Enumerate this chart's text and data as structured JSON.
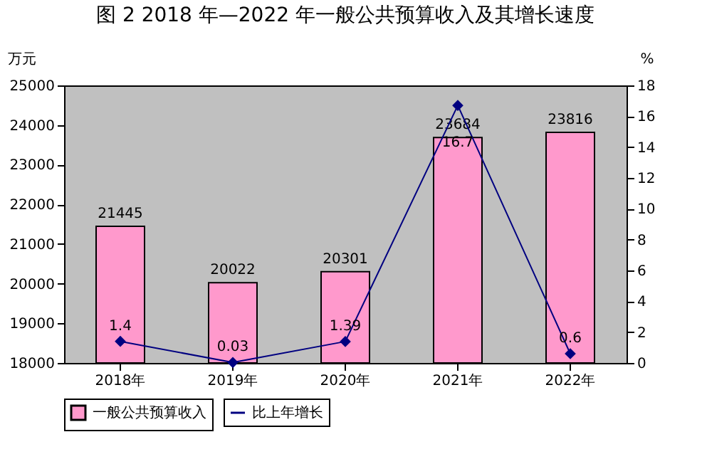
{
  "chart_data": {
    "type": "bar",
    "title": "图 2  2018 年—2022 年一般公共预算收入及其增长速度",
    "ylabel": "万元",
    "y2label": "%",
    "categories": [
      "2018年",
      "2019年",
      "2020年",
      "2021年",
      "2022年"
    ],
    "series": [
      {
        "name": "一般公共预算收入",
        "color": "#ff99cc",
        "values": [
          21445,
          20022,
          20301,
          23684,
          23816
        ]
      },
      {
        "name": "比上年增长",
        "type": "line",
        "color": "#000080",
        "axis": "y2",
        "marker": "diamond",
        "values": [
          1.4,
          0.03,
          1.39,
          16.7,
          0.6
        ]
      }
    ],
    "ylim": [
      18000,
      25000
    ],
    "yticks": [
      18000,
      19000,
      20000,
      21000,
      22000,
      23000,
      24000,
      25000
    ],
    "y2lim": [
      0,
      18
    ],
    "y2ticks": [
      0,
      2,
      4,
      6,
      8,
      10,
      12,
      14,
      16,
      18
    ],
    "data_labels": true,
    "legend": "bottom",
    "grid": false
  }
}
